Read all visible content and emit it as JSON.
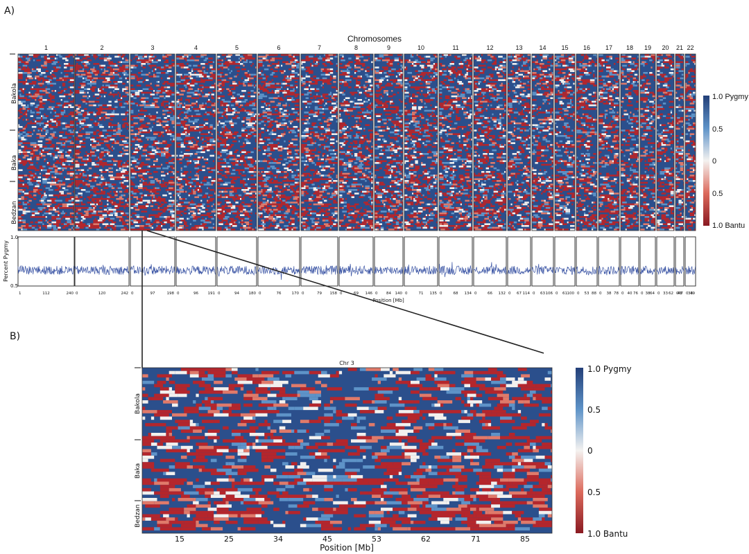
{
  "figure": {
    "panel_a_label": "A)",
    "panel_b_label": "B)"
  },
  "colors": {
    "pygmy": "#2b4f8c",
    "pygmy_light": "#5e93c8",
    "bantu": "#b4262c",
    "bantu_light": "#e07a6a",
    "neutral": "#f2f0ee",
    "line": "#3b55a5"
  },
  "chart_data": [
    {
      "id": "panel_a_heatmap",
      "type": "heatmap",
      "title": "Chromosomes",
      "chromosomes": [
        "1",
        "2",
        "3",
        "4",
        "5",
        "6",
        "7",
        "8",
        "9",
        "10",
        "11",
        "12",
        "13",
        "14",
        "15",
        "16",
        "17",
        "18",
        "19",
        "20",
        "21",
        "22"
      ],
      "groups": [
        "Bakola",
        "Baka",
        "Bedzan"
      ],
      "colorbar": {
        "ticks": [
          "1.0 Pygmy",
          "0.5",
          "0",
          "0.5",
          "1.0 Bantu"
        ]
      }
    },
    {
      "id": "panel_a_line",
      "type": "line",
      "ylabel": "Percent Pygmy",
      "xlabel": "Position [Mb]",
      "ylim": [
        0.5,
        1.0
      ],
      "yticks": [
        "1.0",
        "0.5"
      ],
      "typical_value": 0.66,
      "segment_ticks": [
        [
          "1",
          "112",
          "240"
        ],
        [
          "0",
          "120",
          "242"
        ],
        [
          "0",
          "97",
          "198"
        ],
        [
          "0",
          "96",
          "191"
        ],
        [
          "0",
          "94",
          "180"
        ],
        [
          "0",
          "76",
          "170"
        ],
        [
          "0",
          "79",
          "158"
        ],
        [
          "0",
          "69",
          "146"
        ],
        [
          "0",
          "84",
          "140"
        ],
        [
          "0",
          "71",
          "135"
        ],
        [
          "0",
          "68",
          "134"
        ],
        [
          "0",
          "66",
          "132"
        ],
        [
          "0",
          "67",
          "114"
        ],
        [
          "0",
          "63",
          "106"
        ],
        [
          "0",
          "61",
          "100"
        ],
        [
          "0",
          "53",
          "88"
        ],
        [
          "0",
          "38",
          "78"
        ],
        [
          "0",
          "40",
          "76"
        ],
        [
          "0",
          "38",
          "64"
        ],
        [
          "0",
          "33",
          "62"
        ],
        [
          "0",
          "43",
          "47"
        ],
        [
          "0",
          "33",
          "49"
        ]
      ]
    },
    {
      "id": "panel_b_heatmap",
      "type": "heatmap",
      "title": "Chr 3",
      "xlabel": "Position [Mb]",
      "xticks": [
        "15",
        "25",
        "34",
        "45",
        "53",
        "62",
        "71",
        "85"
      ],
      "groups": [
        "Bakola",
        "Baka",
        "Bedzan"
      ],
      "colorbar": {
        "ticks": [
          "1.0 Pygmy",
          "0.5",
          "0",
          "0.5",
          "1.0 Bantu"
        ]
      }
    }
  ]
}
